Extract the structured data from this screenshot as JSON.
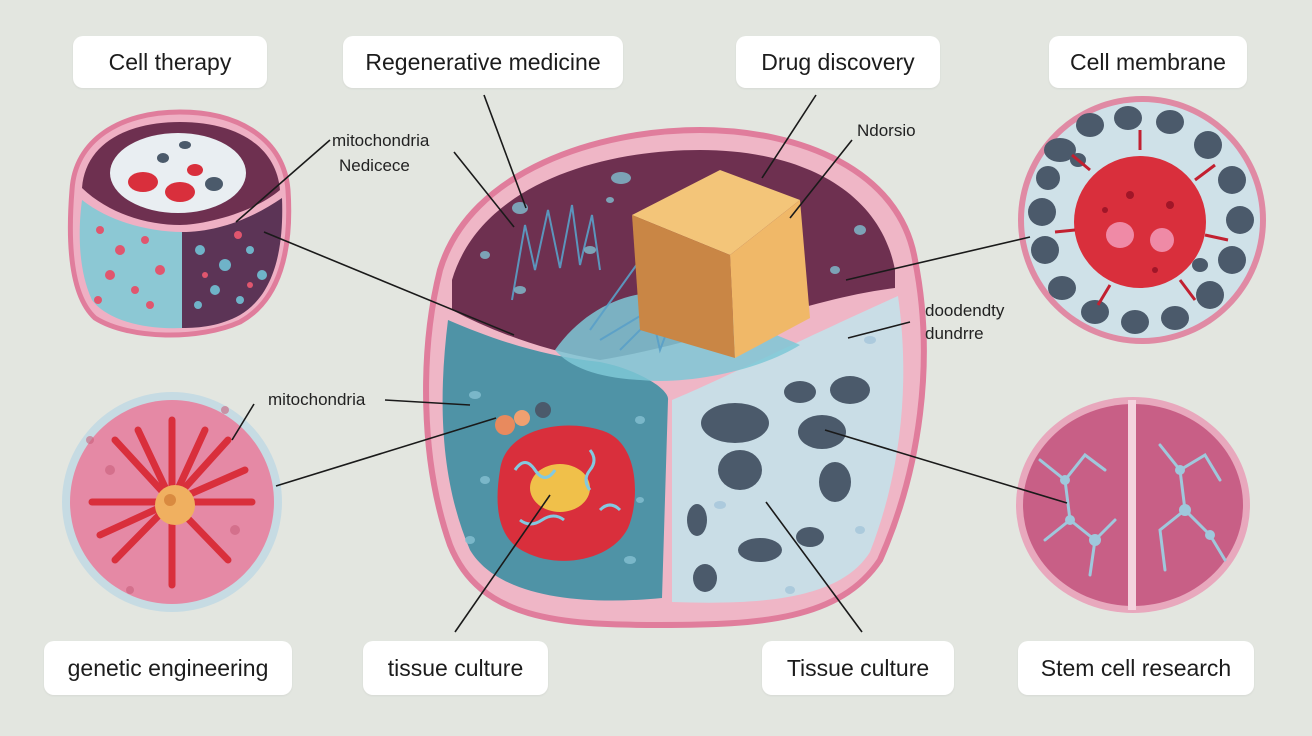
{
  "labels": {
    "cell_therapy": "Cell therapy",
    "regenerative_medicine": "Regenerative medicine",
    "drug_discovery": "Drug discovery",
    "cell_membrane": "Cell membrane",
    "genetic_engineering": "genetic engineering",
    "tissue_culture_lower": "tissue culture",
    "tissue_culture_upper": "Tissue culture",
    "stem_cell_research": "Stem cell research"
  },
  "annotations": {
    "mitochondria_1": "mitochondria",
    "nedicece": "Nedicece",
    "ndorsio": "Ndorsio",
    "doodendty": "doodendty",
    "dundrre": "dundrre",
    "mitochondria_2": "mitochondria"
  },
  "colors": {
    "background": "#e3e6e0",
    "membrane_pink": "#e68aa6",
    "cytoplasm_plum": "#6e3050",
    "cytoplasm_teal": "#4f93a6",
    "cytoplasm_light": "#c9dde6",
    "organelle_red": "#d92f3c",
    "cube_orange": "#e8b060"
  }
}
